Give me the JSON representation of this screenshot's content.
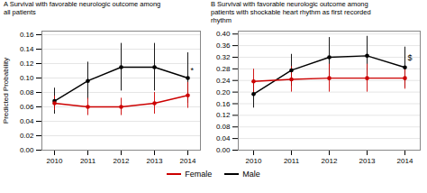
{
  "chart_data": [
    {
      "type": "line",
      "title": "A  Survival with favorable neurologic outcome among\nall patients",
      "y_label": "Predicted Probability",
      "categories": [
        "2010",
        "2011",
        "2012",
        "2013",
        "2014"
      ],
      "series": [
        {
          "name": "Male",
          "color": "#000000",
          "marker": "circle",
          "values": [
            0.068,
            0.096,
            0.115,
            0.115,
            0.1
          ],
          "error_low": [
            0.05,
            0.07,
            0.082,
            0.082,
            0.065
          ],
          "error_high": [
            0.086,
            0.122,
            0.148,
            0.148,
            0.135
          ]
        },
        {
          "name": "Female",
          "color": "#cc0000",
          "marker": "circle",
          "values": [
            0.065,
            0.06,
            0.06,
            0.065,
            0.076
          ],
          "error_low": [
            0.055,
            0.048,
            0.048,
            0.05,
            0.058
          ],
          "error_high": [
            0.075,
            0.072,
            0.072,
            0.08,
            0.094
          ]
        }
      ],
      "annotations": [
        {
          "text": "*",
          "x": "2014",
          "y": 0.107
        }
      ],
      "ylim": [
        0.0,
        0.165
      ],
      "yticks": [
        {
          "value": 0,
          "label": "0.00"
        },
        0.02,
        0.04,
        0.06,
        0.08,
        {
          "value": 0.1,
          "label": "0.10"
        },
        0.12,
        0.14,
        0.16
      ],
      "grid": true,
      "legend": "bottom"
    },
    {
      "type": "line",
      "title": "B  Survival with favorable neurologic outcome among\npatients with shockable heart rhythm as first recorded\nrhythm",
      "categories": [
        "2010",
        "2011",
        "2012",
        "2013",
        "2014"
      ],
      "series": [
        {
          "name": "Male",
          "color": "#000000",
          "marker": "circle",
          "values": [
            0.193,
            0.275,
            0.32,
            0.325,
            0.285
          ],
          "error_low": [
            0.145,
            0.22,
            0.252,
            0.258,
            0.215
          ],
          "error_high": [
            0.241,
            0.33,
            0.388,
            0.392,
            0.355
          ]
        },
        {
          "name": "Female",
          "color": "#cc0000",
          "marker": "circle",
          "values": [
            0.237,
            0.244,
            0.248,
            0.248,
            0.248
          ],
          "error_low": [
            0.195,
            0.2,
            0.2,
            0.2,
            0.21
          ],
          "error_high": [
            0.279,
            0.288,
            0.296,
            0.296,
            0.286
          ]
        }
      ],
      "annotations": [
        {
          "text": "$",
          "x": "2014",
          "y": 0.308
        }
      ],
      "ylim": [
        0.0,
        0.41
      ],
      "yticks": [
        {
          "value": 0,
          "label": "0.00"
        },
        0.04,
        0.08,
        0.12,
        0.16,
        {
          "value": 0.2,
          "label": "0.20"
        },
        0.24,
        0.28,
        0.32,
        0.36,
        {
          "value": 0.4,
          "label": "0.40"
        }
      ],
      "grid": true,
      "legend": "bottom"
    }
  ]
}
